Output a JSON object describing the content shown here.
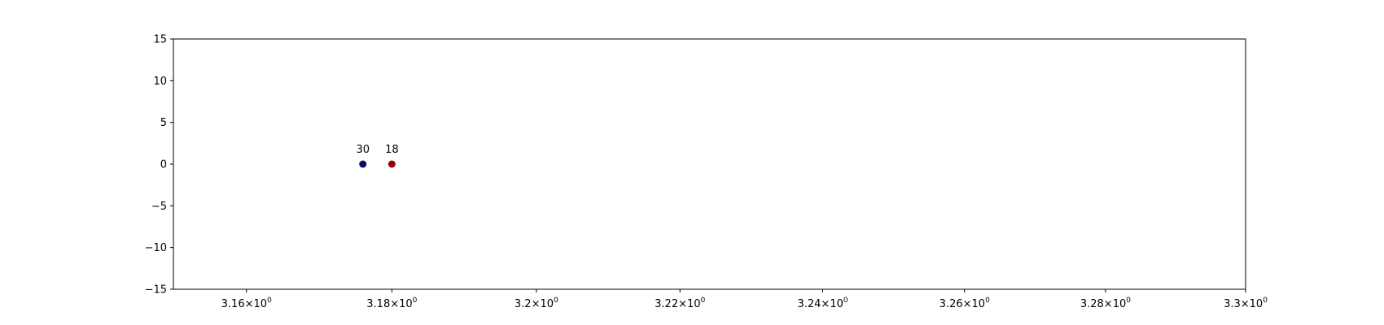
{
  "chart_data": {
    "type": "scatter",
    "title": "",
    "xlabel": "",
    "ylabel": "",
    "x_scale": "log",
    "xlim": [
      3.15,
      3.3
    ],
    "ylim": [
      -15,
      15
    ],
    "grid": false,
    "legend": "none",
    "x_ticks": [
      {
        "value": 3.16,
        "mantissa": "3.16"
      },
      {
        "value": 3.18,
        "mantissa": "3.18"
      },
      {
        "value": 3.2,
        "mantissa": "3.2"
      },
      {
        "value": 3.22,
        "mantissa": "3.22"
      },
      {
        "value": 3.24,
        "mantissa": "3.24"
      },
      {
        "value": 3.26,
        "mantissa": "3.26"
      },
      {
        "value": 3.28,
        "mantissa": "3.28"
      },
      {
        "value": 3.3,
        "mantissa": "3.3"
      }
    ],
    "x_tick_base": "10",
    "x_tick_exponent": "0",
    "y_ticks": [
      "15",
      "10",
      "5",
      "0",
      "−5",
      "−10",
      "−15"
    ],
    "y_tick_values": [
      15,
      10,
      5,
      0,
      -5,
      -10,
      -15
    ],
    "points": [
      {
        "x": 3.176,
        "y": 0,
        "label": "30",
        "color": "#0b0b6b"
      },
      {
        "x": 3.18,
        "y": 0,
        "label": "18",
        "color": "#990000"
      }
    ]
  }
}
